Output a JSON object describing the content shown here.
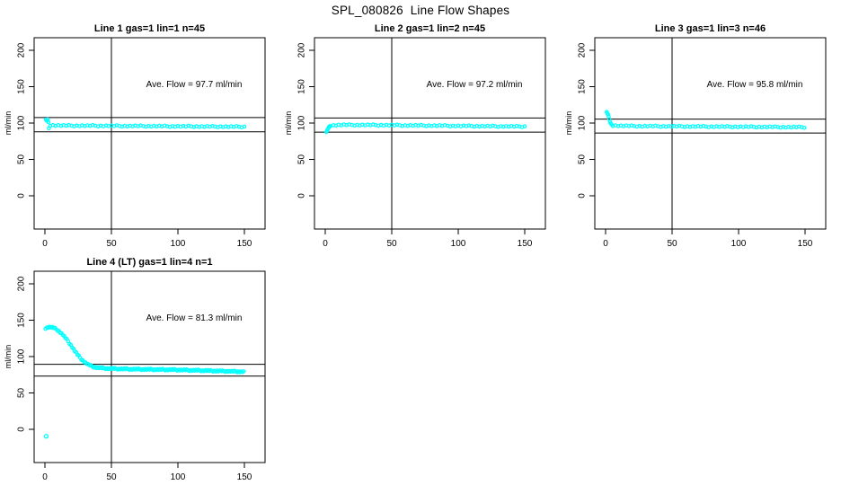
{
  "page": {
    "title": "SPL_080826  Line Flow Shapes"
  },
  "colors": {
    "points": "#00FFFF",
    "axis": "#000000",
    "background": "#FFFFFF"
  },
  "axes": {
    "ylabel": "ml/min",
    "y_ticks": [
      0,
      50,
      100,
      150,
      200
    ],
    "x_ticks": [
      0,
      50,
      100,
      150
    ],
    "ylim": [
      0,
      200
    ],
    "xlim": [
      0,
      150
    ],
    "grid": false
  },
  "chart_data": [
    {
      "type": "scatter",
      "title": "Line 1 gas=1 lin=1 n=45",
      "n": 45,
      "ave_flow_ml_min": 97.7,
      "annotation": "Ave. Flow = 97.7 ml/min",
      "vline_x": 50,
      "ref_lines": {
        "upper": 107.5,
        "lower": 87.9
      },
      "marker": "open-circle",
      "band_halfwidth": 0.8,
      "point_x_step": 2,
      "transient_points": [
        [
          0.8,
          104.6
        ],
        [
          1.4,
          103.1
        ],
        [
          2.0,
          105.0
        ],
        [
          2.6,
          101.4
        ],
        [
          3.0,
          92.9
        ]
      ],
      "trend_anchors": [
        [
          4,
          97.0
        ],
        [
          12,
          96.6
        ],
        [
          20,
          96.4
        ],
        [
          28,
          96.4
        ],
        [
          36,
          96.3
        ],
        [
          44,
          96.2
        ],
        [
          52,
          96.1
        ],
        [
          60,
          96.0
        ],
        [
          68,
          95.9
        ],
        [
          76,
          95.8
        ],
        [
          84,
          95.7
        ],
        [
          92,
          95.6
        ],
        [
          100,
          95.5
        ],
        [
          108,
          95.4
        ],
        [
          116,
          95.3
        ],
        [
          124,
          95.2
        ],
        [
          132,
          95.1
        ],
        [
          140,
          95.0
        ],
        [
          150,
          94.9
        ]
      ],
      "outlier_points": []
    },
    {
      "type": "scatter",
      "title": "Line 2 gas=1 lin=2 n=45",
      "n": 45,
      "ave_flow_ml_min": 97.2,
      "annotation": "Ave. Flow = 97.2 ml/min",
      "vline_x": 50,
      "ref_lines": {
        "upper": 106.9,
        "lower": 87.5
      },
      "marker": "open-circle",
      "band_halfwidth": 0.8,
      "point_x_step": 2,
      "transient_points": [
        [
          0.8,
          87.7
        ],
        [
          1.3,
          89.4
        ],
        [
          1.8,
          91.2
        ],
        [
          2.3,
          93.0
        ],
        [
          2.8,
          94.6
        ],
        [
          3.4,
          95.8
        ]
      ],
      "trend_anchors": [
        [
          4,
          96.6
        ],
        [
          8,
          97.1
        ],
        [
          14,
          97.4
        ],
        [
          22,
          97.4
        ],
        [
          30,
          97.3
        ],
        [
          38,
          97.2
        ],
        [
          46,
          97.1
        ],
        [
          54,
          97.0
        ],
        [
          62,
          96.8
        ],
        [
          70,
          96.7
        ],
        [
          78,
          96.5
        ],
        [
          86,
          96.4
        ],
        [
          94,
          96.2
        ],
        [
          102,
          96.0
        ],
        [
          110,
          95.9
        ],
        [
          118,
          95.7
        ],
        [
          126,
          95.6
        ],
        [
          134,
          95.5
        ],
        [
          142,
          95.3
        ],
        [
          150,
          95.2
        ]
      ],
      "outlier_points": []
    },
    {
      "type": "scatter",
      "title": "Line 3 gas=1 lin=3 n=46",
      "n": 46,
      "ave_flow_ml_min": 95.8,
      "annotation": "Ave. Flow = 95.8 ml/min",
      "vline_x": 50,
      "ref_lines": {
        "upper": 105.4,
        "lower": 86.2
      },
      "marker": "open-circle",
      "band_halfwidth": 0.8,
      "point_x_step": 2,
      "transient_points": [
        [
          0.8,
          115.3
        ],
        [
          1.3,
          113.5
        ],
        [
          1.8,
          112.0
        ],
        [
          2.3,
          109.0
        ],
        [
          2.8,
          105.5
        ],
        [
          3.3,
          102.0
        ],
        [
          3.8,
          99.5
        ],
        [
          4.5,
          98.0
        ]
      ],
      "trend_anchors": [
        [
          5.5,
          96.8
        ],
        [
          12,
          96.1
        ],
        [
          20,
          95.9
        ],
        [
          28,
          95.8
        ],
        [
          36,
          95.7
        ],
        [
          44,
          95.6
        ],
        [
          52,
          95.5
        ],
        [
          60,
          95.4
        ],
        [
          68,
          95.3
        ],
        [
          76,
          95.2
        ],
        [
          84,
          95.1
        ],
        [
          92,
          95.0
        ],
        [
          100,
          94.9
        ],
        [
          108,
          94.8
        ],
        [
          116,
          94.7
        ],
        [
          124,
          94.6
        ],
        [
          132,
          94.5
        ],
        [
          140,
          94.4
        ],
        [
          150,
          94.3
        ]
      ],
      "outlier_points": []
    },
    {
      "type": "scatter",
      "title": "Line 4 (LT) gas=1 lin=4 n=1",
      "n": 1,
      "ave_flow_ml_min": 81.3,
      "annotation": "Ave. Flow = 81.3 ml/min",
      "vline_x": 50,
      "ref_lines": {
        "upper": 89.4,
        "lower": 73.2
      },
      "marker": "open-circle",
      "band_halfwidth": 1.0,
      "point_x_step": 1,
      "transient_points": [],
      "trend_anchors": [
        [
          0.5,
          139.2
        ],
        [
          2,
          140.3
        ],
        [
          4,
          140.6
        ],
        [
          6,
          139.8
        ],
        [
          8,
          138.2
        ],
        [
          10,
          135.8
        ],
        [
          12,
          132.6
        ],
        [
          14,
          128.8
        ],
        [
          16,
          124.4
        ],
        [
          18,
          119.6
        ],
        [
          20,
          114.4
        ],
        [
          22,
          109.0
        ],
        [
          24,
          103.8
        ],
        [
          26,
          99.2
        ],
        [
          28,
          95.4
        ],
        [
          30,
          92.2
        ],
        [
          32,
          89.6
        ],
        [
          34,
          87.6
        ],
        [
          36,
          86.2
        ],
        [
          38,
          85.2
        ],
        [
          40,
          84.6
        ],
        [
          44,
          84.0
        ],
        [
          48,
          83.6
        ],
        [
          52,
          83.3
        ],
        [
          56,
          83.1
        ],
        [
          60,
          82.9
        ],
        [
          68,
          82.6
        ],
        [
          76,
          82.4
        ],
        [
          84,
          82.2
        ],
        [
          92,
          82.0
        ],
        [
          100,
          81.7
        ],
        [
          108,
          81.3
        ],
        [
          116,
          80.9
        ],
        [
          124,
          80.5
        ],
        [
          132,
          80.1
        ],
        [
          140,
          79.7
        ],
        [
          146,
          79.3
        ],
        [
          150,
          79.0
        ]
      ],
      "outlier_points": [
        [
          1.0,
          -9.5
        ]
      ]
    }
  ]
}
